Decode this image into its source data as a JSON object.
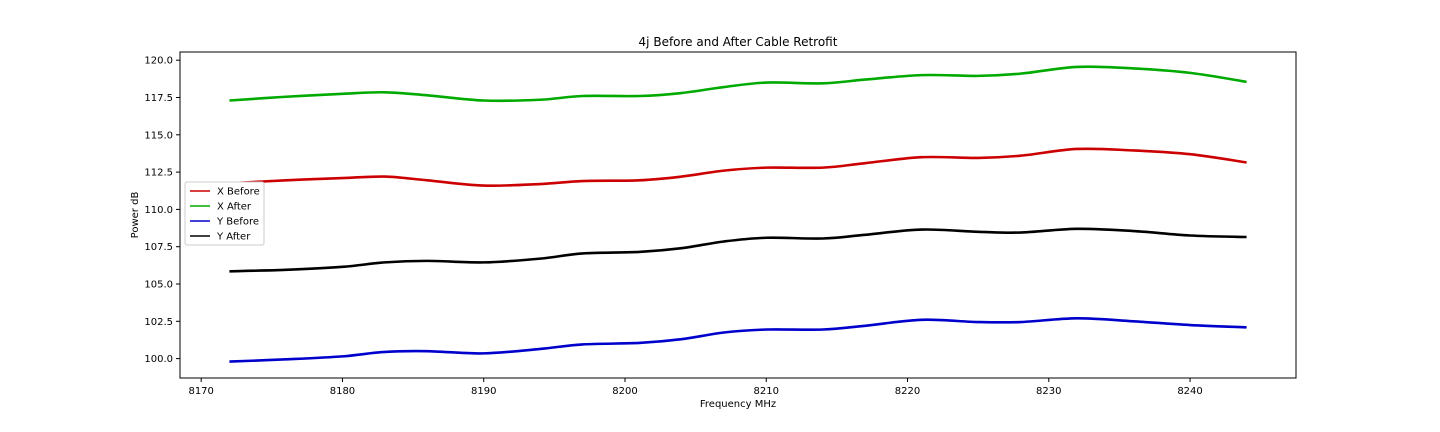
{
  "chart_data": {
    "type": "line",
    "title": "4j Before and After Cable Retrofit",
    "xlabel": "Frequency MHz",
    "ylabel": "Power dB",
    "xlim": [
      8168.5,
      8247.5
    ],
    "ylim": [
      98.7,
      120.55
    ],
    "xticks": [
      8170,
      8180,
      8190,
      8200,
      8210,
      8220,
      8230,
      8240
    ],
    "xtick_labels": [
      "8170",
      "8180",
      "8190",
      "8200",
      "8210",
      "8220",
      "8230",
      "8240"
    ],
    "yticks": [
      100.0,
      102.5,
      105.0,
      107.5,
      110.0,
      112.5,
      115.0,
      117.5,
      120.0
    ],
    "ytick_labels": [
      "100.0",
      "102.5",
      "105.0",
      "107.5",
      "110.0",
      "112.5",
      "115.0",
      "117.5",
      "120.0"
    ],
    "grid": false,
    "legend_position": "center-left",
    "x": [
      8172,
      8176,
      8180,
      8183,
      8186,
      8190,
      8194,
      8197,
      8201,
      8204,
      8207,
      8210,
      8214,
      8217,
      8221,
      8225,
      8228,
      8232,
      8236,
      8240,
      8244
    ],
    "series": [
      {
        "name": "X Before",
        "color": "#cc0000",
        "values": [
          111.75,
          111.95,
          112.1,
          112.2,
          111.95,
          111.6,
          111.7,
          111.9,
          111.95,
          112.2,
          112.6,
          112.8,
          112.8,
          113.1,
          113.5,
          113.45,
          113.6,
          114.05,
          113.95,
          113.7,
          113.15
        ]
      },
      {
        "name": "X After",
        "color": "#00aa00",
        "values": [
          117.3,
          117.55,
          117.75,
          117.85,
          117.65,
          117.3,
          117.35,
          117.6,
          117.6,
          117.8,
          118.2,
          118.5,
          118.45,
          118.7,
          119.0,
          118.95,
          119.1,
          119.55,
          119.45,
          119.15,
          118.55
        ]
      },
      {
        "name": "Y Before",
        "color": "#0000cc",
        "values": [
          99.8,
          99.95,
          100.15,
          100.45,
          100.5,
          100.35,
          100.65,
          100.95,
          101.05,
          101.3,
          101.75,
          101.95,
          101.95,
          102.2,
          102.6,
          102.45,
          102.45,
          102.7,
          102.5,
          102.25,
          102.1
        ]
      },
      {
        "name": "Y After",
        "color": "#000000",
        "values": [
          105.85,
          105.95,
          106.15,
          106.45,
          106.55,
          106.45,
          106.7,
          107.05,
          107.15,
          107.4,
          107.85,
          108.1,
          108.05,
          108.3,
          108.65,
          108.5,
          108.45,
          108.7,
          108.55,
          108.25,
          108.15
        ]
      }
    ]
  }
}
